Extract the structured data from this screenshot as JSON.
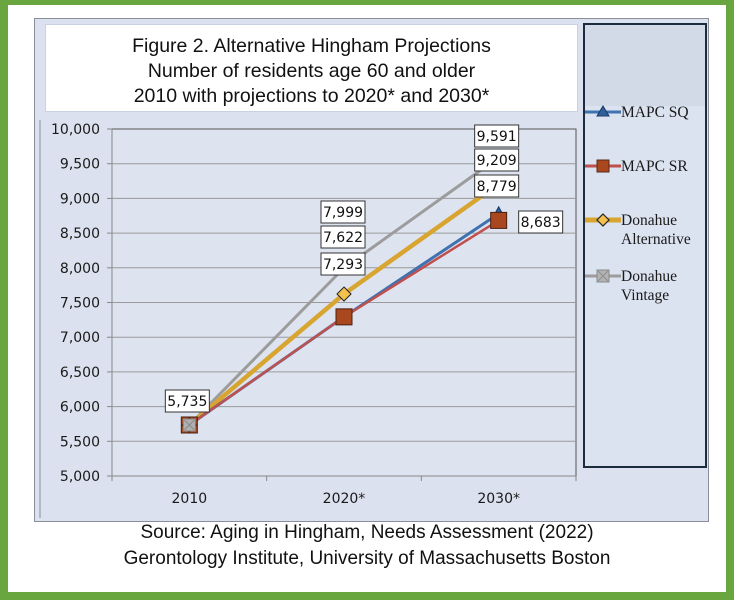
{
  "chart_data": {
    "type": "line",
    "title": "Figure 2. Alternative Hingham Projections",
    "subtitle_lines": [
      "Number of residents age 60 and older",
      "2010 with projections to 2020* and 2030*"
    ],
    "categories": [
      "2010",
      "2020*",
      "2030*"
    ],
    "xlabel": "",
    "ylabel": "",
    "ylim": [
      5000,
      10000
    ],
    "yticks": [
      5000,
      5500,
      6000,
      6500,
      7000,
      7500,
      8000,
      8500,
      9000,
      9500,
      10000
    ],
    "ytick_labels": [
      "5,000",
      "5,500",
      "6,000",
      "6,500",
      "7,000",
      "7,500",
      "8,000",
      "8,500",
      "9,000",
      "9,500",
      "10,000"
    ],
    "grid": true,
    "legend_position": "right",
    "series": [
      {
        "name": "MAPC SQ",
        "values": [
          5735,
          7293,
          8779
        ],
        "color": "#3e72b0",
        "marker": "triangle"
      },
      {
        "name": "MAPC SR",
        "values": [
          5735,
          7293,
          8683
        ],
        "color": "#c0504d",
        "marker": "square",
        "marker_color": "#a9471f"
      },
      {
        "name": "Donahue Alternative",
        "values": [
          5735,
          7622,
          9209
        ],
        "color": "#d8a531",
        "marker": "diamond"
      },
      {
        "name": "Donahue Vintage",
        "values": [
          5735,
          7999,
          9591
        ],
        "color": "#9c9c9c",
        "marker": "x-square"
      }
    ],
    "data_labels": [
      {
        "category": "2010",
        "text": "5,735"
      },
      {
        "category": "2020*",
        "text": "7,999"
      },
      {
        "category": "2020*",
        "text": "7,622"
      },
      {
        "category": "2020*",
        "text": "7,293"
      },
      {
        "category": "2030*",
        "text": "9,591"
      },
      {
        "category": "2030*",
        "text": "9,209"
      },
      {
        "category": "2030*",
        "text": "8,779"
      },
      {
        "category": "2030*",
        "text": "8,683"
      }
    ]
  },
  "legend": {
    "items": [
      {
        "lines": [
          "MAPC SQ"
        ]
      },
      {
        "lines": [
          "MAPC SR"
        ]
      },
      {
        "lines": [
          "Donahue",
          "Alternative"
        ]
      },
      {
        "lines": [
          "Donahue",
          "Vintage"
        ]
      }
    ]
  },
  "source": {
    "line1": "Source: Aging in Hingham, Needs Assessment (2022)",
    "line2": "Gerontology Institute, University of Massachusetts Boston"
  }
}
